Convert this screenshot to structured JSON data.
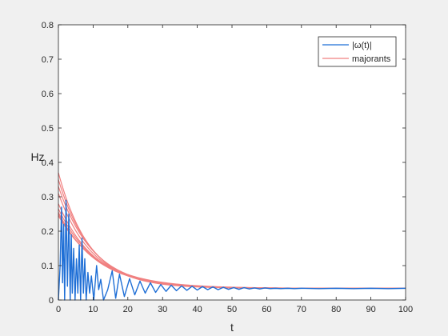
{
  "chart_data": {
    "type": "line",
    "title": "",
    "xlabel": "t",
    "ylabel": "Hz",
    "xlim": [
      0,
      100
    ],
    "ylim": [
      0,
      0.8
    ],
    "x_ticks": [
      0,
      10,
      20,
      30,
      40,
      50,
      60,
      70,
      80,
      90,
      100
    ],
    "y_ticks": [
      0,
      0.1,
      0.2,
      0.3,
      0.4,
      0.5,
      0.6,
      0.7,
      0.8
    ],
    "x_tick_labels": [
      "0",
      "10",
      "20",
      "30",
      "40",
      "50",
      "60",
      "70",
      "80",
      "90",
      "100"
    ],
    "y_tick_labels": [
      "0",
      "0.1",
      "0.2",
      "0.3",
      "0.4",
      "0.5",
      "0.6",
      "0.7",
      "0.8"
    ],
    "grid": false,
    "legend_position": "top-right",
    "legend": [
      "|ω(t)|",
      "majorants"
    ],
    "colors": {
      "omega": "#1f6fd6",
      "majorants": "#f08080",
      "axes": "#262626",
      "plot_bg": "#ffffff",
      "figure_bg": "#f0f0f0"
    },
    "series": [
      {
        "name": "|ω(t)|",
        "points": [
          [
            0,
            0
          ],
          [
            0.5,
            0.1
          ],
          [
            0.9,
            0.27
          ],
          [
            1.2,
            0.05
          ],
          [
            1.5,
            0.22
          ],
          [
            1.8,
            0.0
          ],
          [
            2.2,
            0.29
          ],
          [
            2.6,
            0.04
          ],
          [
            3.0,
            0.25
          ],
          [
            3.4,
            0.0
          ],
          [
            3.7,
            0.19
          ],
          [
            4.0,
            0.02
          ],
          [
            4.4,
            0.15
          ],
          [
            4.8,
            0.0
          ],
          [
            5.2,
            0.12
          ],
          [
            5.6,
            0.02
          ],
          [
            6.0,
            0.16
          ],
          [
            6.4,
            0.0
          ],
          [
            6.8,
            0.18
          ],
          [
            7.2,
            0.02
          ],
          [
            7.6,
            0.12
          ],
          [
            8.0,
            0.0
          ],
          [
            8.5,
            0.08
          ],
          [
            9.0,
            0.02
          ],
          [
            9.5,
            0.07
          ],
          [
            10.2,
            0.0
          ],
          [
            11.0,
            0.1
          ],
          [
            11.6,
            0.03
          ],
          [
            12.2,
            0.06
          ],
          [
            13.0,
            0.0
          ],
          [
            14.2,
            0.03
          ],
          [
            15.5,
            0.085
          ],
          [
            16.5,
            0.005
          ],
          [
            17.6,
            0.075
          ],
          [
            19.0,
            0.01
          ],
          [
            20.5,
            0.062
          ],
          [
            22.0,
            0.015
          ],
          [
            23.5,
            0.055
          ],
          [
            25.0,
            0.02
          ],
          [
            26.5,
            0.05
          ],
          [
            28.0,
            0.022
          ],
          [
            29.5,
            0.045
          ],
          [
            31.0,
            0.025
          ],
          [
            32.5,
            0.043
          ],
          [
            34.0,
            0.027
          ],
          [
            35.5,
            0.041
          ],
          [
            37.0,
            0.028
          ],
          [
            38.5,
            0.04
          ],
          [
            40.0,
            0.029
          ],
          [
            41.5,
            0.039
          ],
          [
            43.0,
            0.03
          ],
          [
            44.5,
            0.038
          ],
          [
            46.0,
            0.03
          ],
          [
            47.5,
            0.037
          ],
          [
            49.0,
            0.031
          ],
          [
            50.5,
            0.036
          ],
          [
            52.0,
            0.031
          ],
          [
            53.5,
            0.036
          ],
          [
            55.0,
            0.032
          ],
          [
            56.5,
            0.035
          ],
          [
            58.0,
            0.032
          ],
          [
            59.5,
            0.035
          ],
          [
            61.0,
            0.033
          ],
          [
            62.5,
            0.034
          ],
          [
            64.0,
            0.033
          ],
          [
            66.0,
            0.034
          ],
          [
            68.0,
            0.033
          ],
          [
            70.0,
            0.034
          ],
          [
            75.0,
            0.033
          ],
          [
            80.0,
            0.034
          ],
          [
            85.0,
            0.033
          ],
          [
            90.0,
            0.034
          ],
          [
            95.0,
            0.033
          ],
          [
            100.0,
            0.034
          ]
        ]
      },
      {
        "name": "majorants",
        "curves": [
          {
            "start": 0.37,
            "tau": 9.0
          },
          {
            "start": 0.35,
            "tau": 9.5
          },
          {
            "start": 0.33,
            "tau": 10.0
          },
          {
            "start": 0.31,
            "tau": 10.0
          },
          {
            "start": 0.28,
            "tau": 10.5
          },
          {
            "start": 0.265,
            "tau": 11.0
          },
          {
            "start": 0.255,
            "tau": 11.0
          },
          {
            "start": 0.25,
            "tau": 11.5
          },
          {
            "start": 0.245,
            "tau": 12.0
          }
        ],
        "asymptote": 0.034
      }
    ]
  }
}
